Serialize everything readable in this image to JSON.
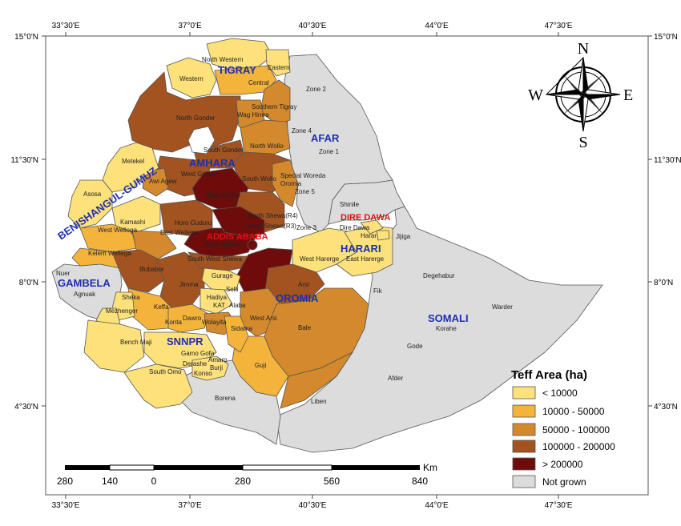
{
  "axes": {
    "top_ticks": [
      "33°30'E",
      "37°0'E",
      "40°30'E",
      "44°0'E",
      "47°30'E"
    ],
    "bottom_ticks": [
      "33°30'E",
      "37°0'E",
      "40°30'E",
      "44°0'E",
      "47°30'E"
    ],
    "left_ticks": [
      "15°0'N",
      "11°30'N",
      "8°0'N",
      "4°30'N"
    ],
    "right_ticks": [
      "15°0'N",
      "11°30'N",
      "8°0'N",
      "4°30'N"
    ]
  },
  "regions": {
    "tigray": "TIGRAY",
    "afar": "AFAR",
    "amhara": "AMHARA",
    "benishangul": "BENISHANGUL-GUMUZ",
    "dire_dawa": "DIRE DAWA",
    "addis_ababa": "ADDIS ABABA",
    "harari": "HARARI",
    "gambela": "GAMBELA",
    "oromia": "OROMIA",
    "somali": "SOMALI",
    "snnpr": "SNNPR"
  },
  "zones": {
    "north_western": "North Western",
    "eastern": "Eastern",
    "western": "Western",
    "central": "Central",
    "southern_tigray": "Southern Tigray",
    "zone2": "Zone 2",
    "north_gonder": "North Gonder",
    "wag_himra": "Wag Himra",
    "zone4": "Zone 4",
    "south_gonder": "South Gonder",
    "north_wollo": "North Wollo",
    "zone1": "Zone 1",
    "metekel": "Metekel",
    "west_gojam": "West Gojam",
    "awi": "Awi Agew",
    "south_wollo": "South Wollo",
    "special_woreda": "Special Woreda",
    "oromia_zone": "Oromia",
    "zone5": "Zone 5",
    "east_gojam": "East Gojam",
    "assosa": "Asosa",
    "shinile": "Shinile",
    "kamashi": "Kamashi",
    "horo_guduru": "Horo Guduru",
    "north_shewa_r4": "North Shewa(R4)",
    "north_shewa_r3": "North Shewa(R3)",
    "zone3": "Zone 3",
    "dire_dawa_z": "Dire Dawa",
    "harar": "Harar",
    "jijiga": "Jijiga",
    "west_wellega": "West Wellega",
    "east_wellega": "East Wellega",
    "west_shewa": "West Shewa",
    "kelem_wellega": "Kelem Wellega",
    "south_west_shewa": "South West Shewa",
    "west_harerge": "West Harerge",
    "east_harerge": "East Harerge",
    "illubabor": "Illubabor",
    "gurage": "Gurage",
    "degehabur": "Degehabur",
    "nuer": "Nuer",
    "jimma": "Jimma",
    "silti": "Selti",
    "arsi": "Arsi",
    "agnuak": "Agnuak",
    "sheka": "Sheka",
    "keffa": "Keffa",
    "hadiya": "Hadiya",
    "kat": "KAT",
    "alaba": "Alaba",
    "fik": "Fik",
    "warder": "Warder",
    "mezhenger": "Mezhenger",
    "konta": "Konta",
    "dawro": "Dawro",
    "wolayita": "Wolayita",
    "west_arsi": "West Arsi",
    "korahe": "Korahe",
    "bale": "Bale",
    "sidama": "Sidama",
    "bench_maji": "Bench Maji",
    "gamo_gofa": "Gamo Gofa",
    "gode": "Gode",
    "amaro": "Amaro",
    "derashe": "Derashe",
    "burji": "Burji",
    "guji": "Guji",
    "south_omo": "South Omo",
    "konso": "Konso",
    "afder": "Afder",
    "borena": "Borena",
    "liben": "Liben"
  },
  "compass": {
    "n": "N",
    "s": "S",
    "e": "E",
    "w": "W"
  },
  "legend": {
    "title": "Teff Area (ha)",
    "items": [
      {
        "label": "< 10000",
        "color": "#fde17a"
      },
      {
        "label": "10000 - 50000",
        "color": "#f4b43c"
      },
      {
        "label": "50000 - 100000",
        "color": "#d48a2c"
      },
      {
        "label": "100000 - 200000",
        "color": "#a25320"
      },
      {
        "label": "> 200000",
        "color": "#6e0c0c"
      },
      {
        "label": "Not grown",
        "color": "#dcdcdc"
      }
    ]
  },
  "scale_bar": {
    "unit": "Km",
    "labels": [
      "280",
      "140",
      "0",
      "280",
      "560",
      "840"
    ]
  }
}
